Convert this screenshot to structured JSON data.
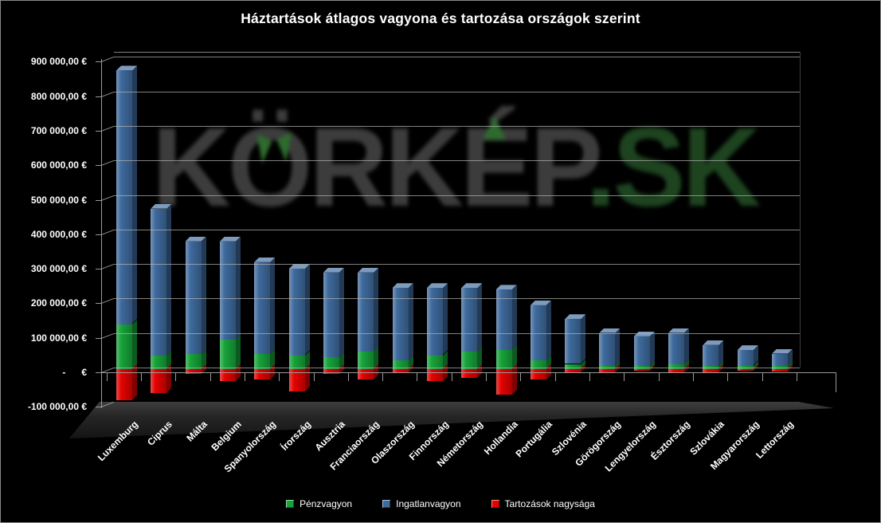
{
  "page": {
    "title": "Háztartások átlagos vagyona és tartozása országok szerint",
    "background_color": "#000000",
    "border_color": "#8a8a8a",
    "text_color": "#ffffff",
    "gridline_color": "#b2b2b2"
  },
  "watermark": {
    "text_gray": "KÖRKÉP",
    "text_green": ".SK",
    "gray_color": "#3c3c3c",
    "green_color": "#1d431f",
    "leaf_icon_color": "#2e6b2e"
  },
  "chart_data": {
    "type": "bar",
    "stacked": true,
    "style": "3d",
    "title": "Háztartások átlagos vagyona és tartozása országok szerint",
    "currency": "EUR",
    "gridlines": true,
    "legend_position": "bottom",
    "categories": [
      "Luxemburg",
      "Ciprus",
      "Málta",
      "Belgium",
      "Spanyolország",
      "Írország",
      "Ausztria",
      "Franciaország",
      "Olaszország",
      "Finnország",
      "Németország",
      "Hollandia",
      "Portugália",
      "Szlovénia",
      "Görögország",
      "Lengyelország",
      "Észtország",
      "Szlovákia",
      "Magyarország",
      "Lettország"
    ],
    "series": [
      {
        "name": "Pénzvagyon",
        "color": "#17a33a",
        "values": [
          130000,
          40000,
          45000,
          85000,
          45000,
          40000,
          35000,
          50000,
          25000,
          40000,
          50000,
          55000,
          25000,
          15000,
          10000,
          10000,
          15000,
          10000,
          10000,
          10000
        ]
      },
      {
        "name": "Ingatlanvagyon",
        "color": "#3e6a9d",
        "values": [
          735000,
          425000,
          325000,
          285000,
          265000,
          250000,
          245000,
          230000,
          210000,
          195000,
          185000,
          175000,
          160000,
          130000,
          95000,
          85000,
          90000,
          60000,
          45000,
          35000
        ]
      },
      {
        "name": "Tartozások nagysága",
        "color": "#e30300",
        "values": [
          -90000,
          -70000,
          -15000,
          -35000,
          -30000,
          -65000,
          -15000,
          -30000,
          -10000,
          -35000,
          -25000,
          -75000,
          -30000,
          -10000,
          -10000,
          -5000,
          -10000,
          -10000,
          -5000,
          -7000
        ]
      }
    ],
    "y_axis": {
      "min": -100000,
      "max": 900000,
      "step": 100000,
      "tick_labels": [
        "900 000,00 €",
        "800 000,00 €",
        "700 000,00 €",
        "600 000,00 €",
        "500 000,00 €",
        "400 000,00 €",
        "300 000,00 €",
        "200 000,00 €",
        "100 000,00 €",
        "-      €",
        "-100 000,00 €"
      ],
      "tick_values": [
        900000,
        800000,
        700000,
        600000,
        500000,
        400000,
        300000,
        200000,
        100000,
        0,
        -100000
      ]
    }
  }
}
